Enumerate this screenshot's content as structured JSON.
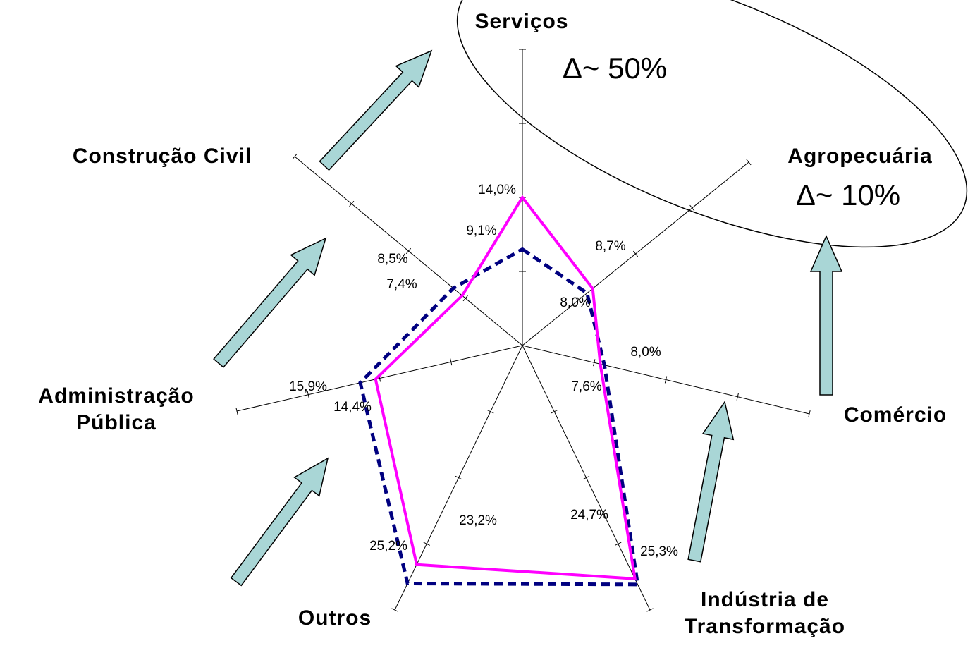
{
  "chart_data": {
    "type": "radar",
    "categories": [
      "Serviços",
      "Agropecuária",
      "Comércio",
      "Indústria de Transformação",
      "Outros",
      "Administração Pública",
      "Construção Civil"
    ],
    "ylim": [
      0,
      28
    ],
    "yticks": [
      0,
      7,
      14,
      21,
      28
    ],
    "series": [
      {
        "color": "#ff00ff",
        "dashed": false,
        "values": [
          14.0,
          8.7,
          7.6,
          24.7,
          23.2,
          14.4,
          7.4
        ],
        "value_labels": [
          "14,0%",
          "8,7%",
          "7,6%",
          "24,7%",
          "23,2%",
          "14,4%",
          "7,4%"
        ]
      },
      {
        "color": "#000080",
        "dashed": true,
        "values": [
          9.1,
          8.0,
          8.0,
          25.3,
          25.2,
          15.9,
          8.5
        ],
        "value_labels": [
          "9,1%",
          "8,0%",
          "8,0%",
          "25,3%",
          "25,2%",
          "15,9%",
          "8,5%"
        ]
      }
    ],
    "annotations": [
      "Δ~ 50%",
      "Δ~ 10%"
    ]
  }
}
